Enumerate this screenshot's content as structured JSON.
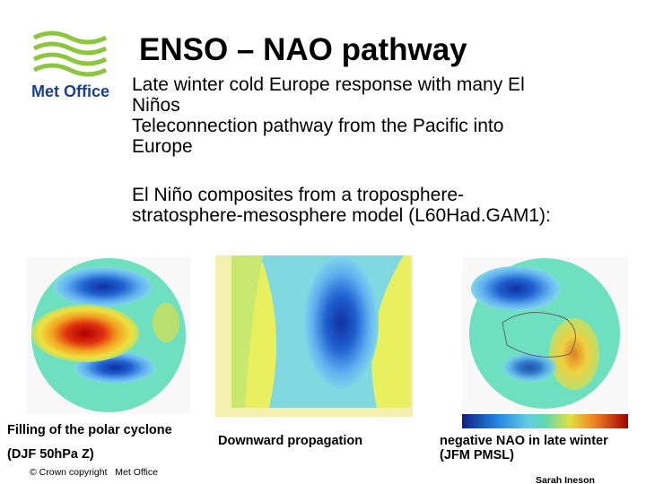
{
  "logo": {
    "text": "Met Office"
  },
  "title": "ENSO – NAO pathway",
  "bullets": [
    "Late winter cold Europe response with many El Niños",
    "Teleconnection pathway from the Pacific into Europe"
  ],
  "intro": "El Niño composites from a troposphere-stratosphere-mesosphere model (L60Had.GAM1):",
  "panels": [
    {
      "caption": "Filling of the polar cyclone",
      "subcaption": "(DJF 50hPa Z)"
    },
    {
      "caption": "Downward propagation"
    },
    {
      "caption": "negative NAO in late winter",
      "subcaption": "(JFM PMSL)"
    }
  ],
  "footer": {
    "copyright": "© Crown copyright   Met Office",
    "author": "Sarah Ineson"
  }
}
